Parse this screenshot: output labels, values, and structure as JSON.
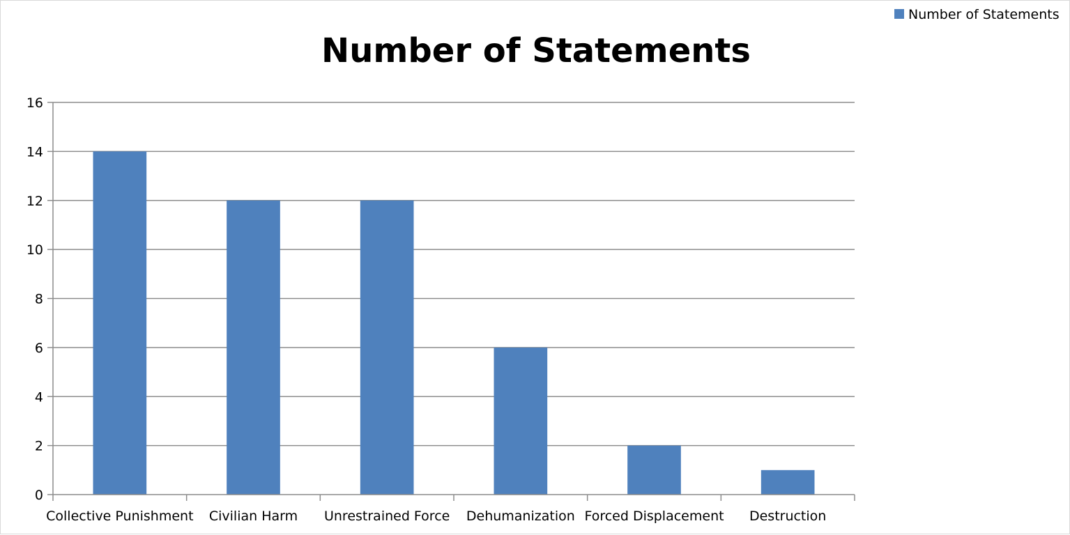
{
  "chart_data": {
    "type": "bar",
    "title": "Number of Statements",
    "xlabel": "",
    "ylabel": "",
    "categories": [
      "Collective Punishment",
      "Civilian Harm",
      "Unrestrained Force",
      "Dehumanization",
      "Forced Displacement",
      "Destruction"
    ],
    "series": [
      {
        "name": "Number of Statements",
        "values": [
          14,
          12,
          12,
          6,
          2,
          1
        ]
      }
    ],
    "ylim": [
      0,
      16
    ],
    "yticks": [
      "0",
      "2",
      "4",
      "6",
      "8",
      "10",
      "12",
      "14",
      "16"
    ],
    "grid": true,
    "legend_position": "top-right",
    "colors": {
      "bar": "#4f81bd",
      "grid": "#8c8c8c",
      "axis": "#8c8c8c"
    }
  }
}
